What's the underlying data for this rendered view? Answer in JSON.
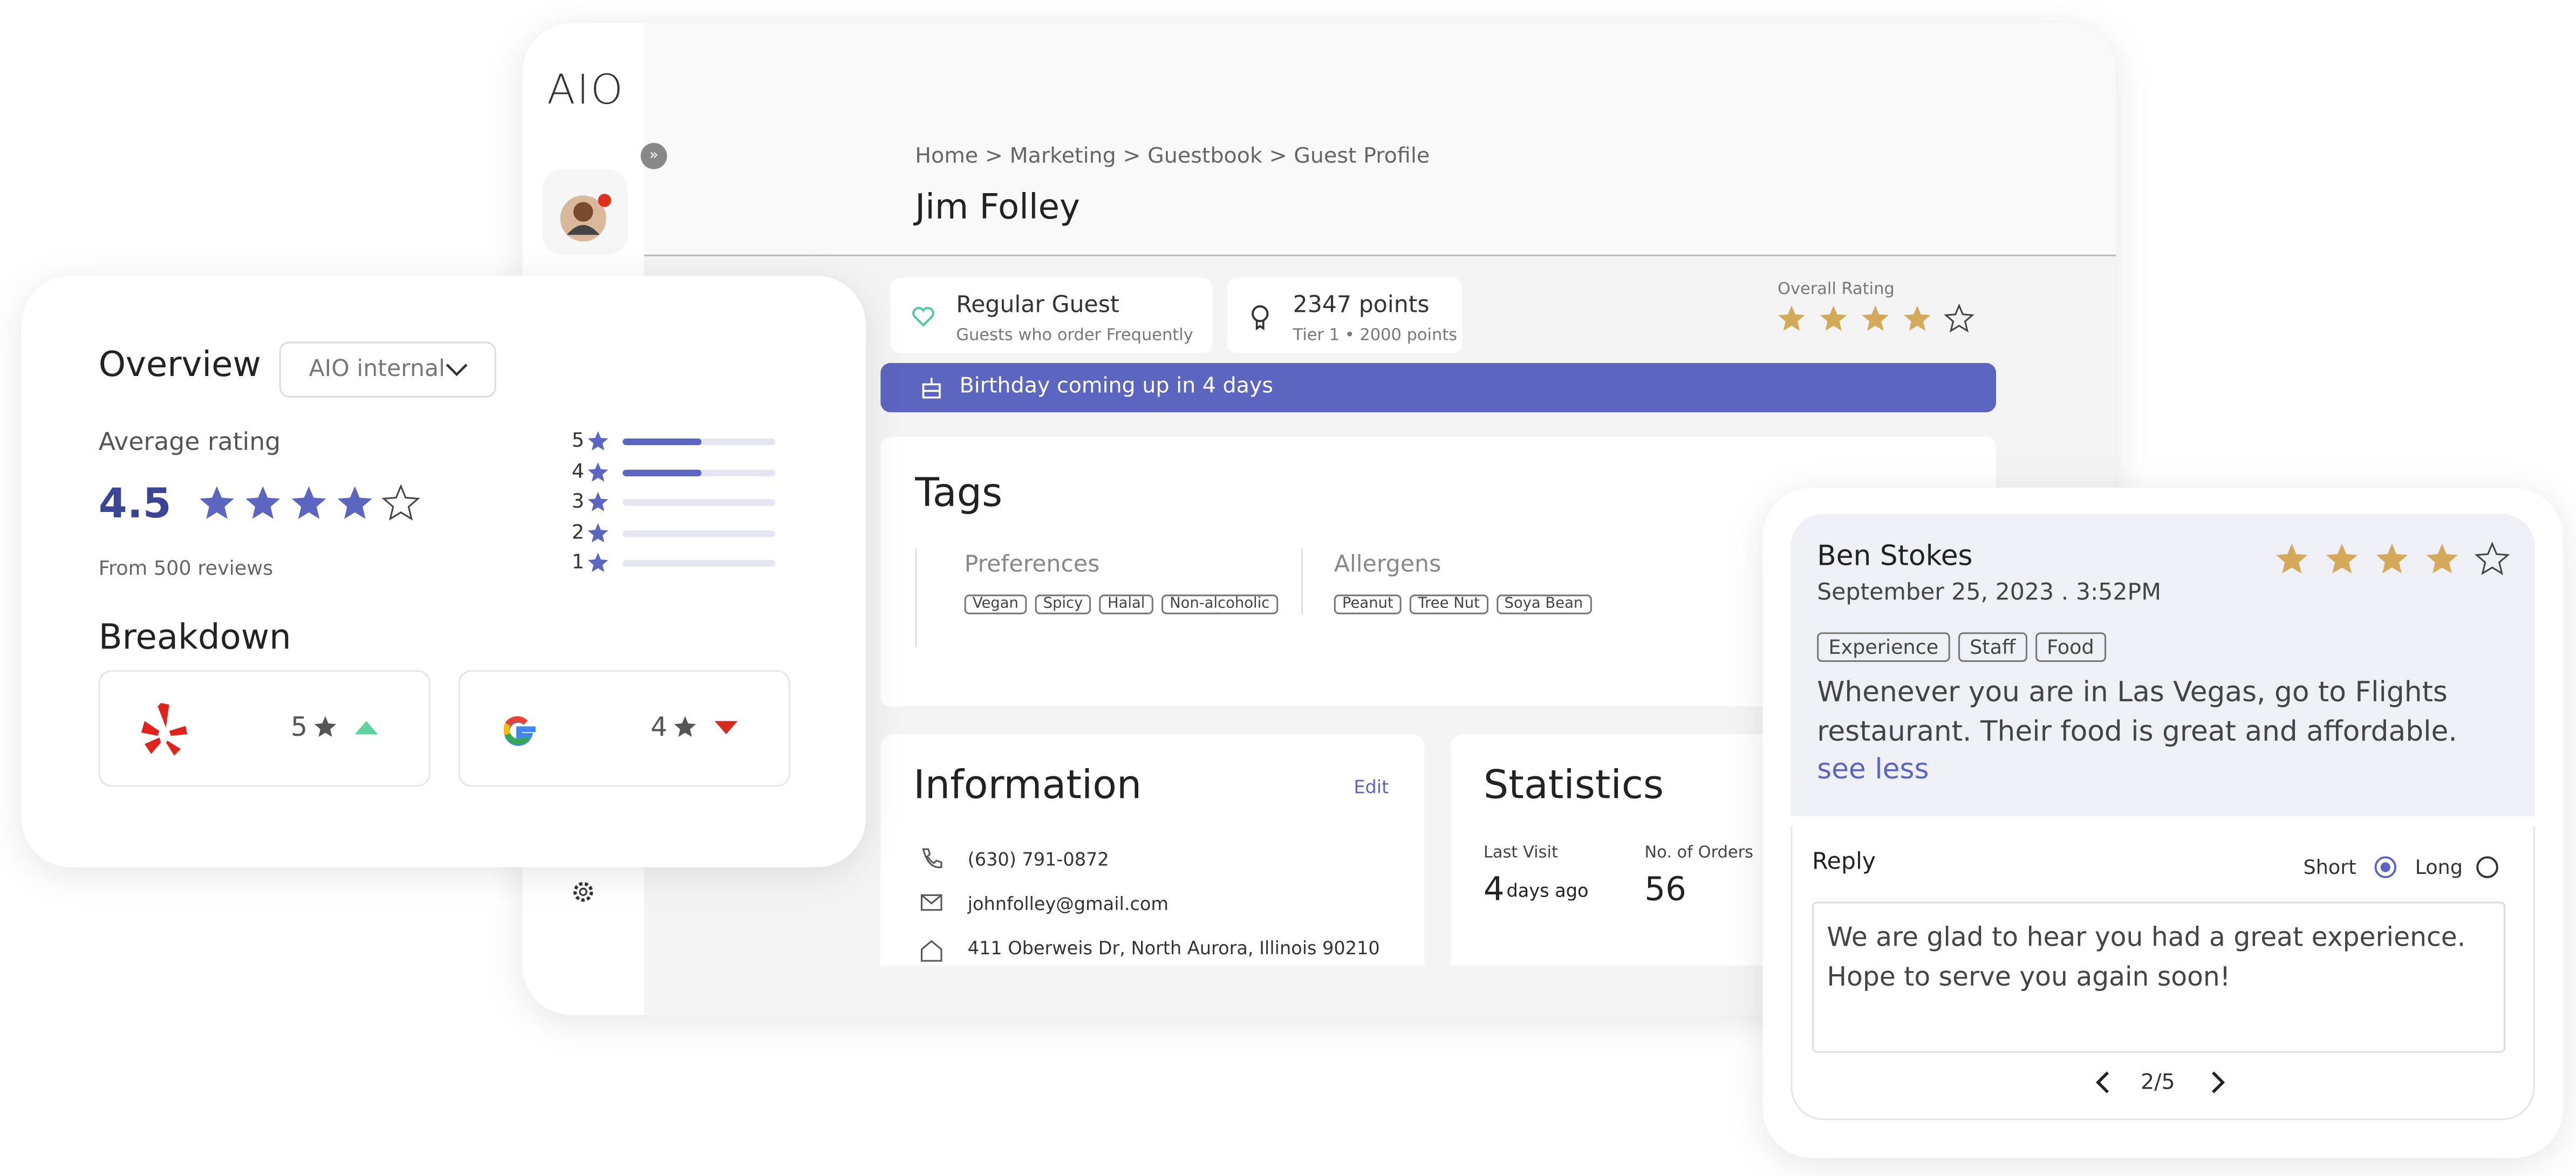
{
  "logo": "AIO",
  "breadcrumb": "Home > Marketing > Guestbook > Guest Profile",
  "guest": {
    "name": "Jim Folley",
    "status": "Regular Guest",
    "status_note": "Guests who order Frequently",
    "points": "2347 points",
    "tier": "Tier 1 • 2000 points",
    "overall_rating_label": "Overall Rating",
    "overall_rating": 4,
    "birthday": "Birthday coming up in 4 days"
  },
  "tags": {
    "title": "Tags",
    "groups": [
      {
        "name": "Preferences",
        "items": [
          "Vegan",
          "Spicy",
          "Halal",
          "Non-alcoholic"
        ]
      },
      {
        "name": "Allergens",
        "items": [
          "Peanut",
          "Tree Nut",
          "Soya Bean"
        ]
      }
    ]
  },
  "information": {
    "title": "Information",
    "edit": "Edit",
    "phone": "(630) 791-0872",
    "email": "johnfolley@gmail.com",
    "address": "411 Oberweis Dr, North Aurora, Illinois 90210"
  },
  "statistics": {
    "title": "Statistics",
    "last_visit_label": "Last Visit",
    "last_visit_value": 4,
    "last_visit_unit": "days ago",
    "orders_label": "No. of Orders",
    "orders": 56
  },
  "overview": {
    "title": "Overview",
    "source": "AIO internal",
    "average_label": "Average rating",
    "average": 4.5,
    "reviews": "From 500 reviews",
    "levels": [
      5,
      4,
      3,
      2,
      1
    ],
    "shares": [
      52,
      52,
      0,
      0,
      0
    ],
    "breakdown_title": "Breakdown",
    "sources": [
      {
        "rating": 5,
        "trend": "up"
      },
      {
        "rating": 4,
        "trend": "down"
      }
    ]
  },
  "review": {
    "author": "Ben Stokes",
    "date": "September 25, 2023 . 3:52PM",
    "rating": 4,
    "tags": [
      "Experience",
      "Staff",
      "Food"
    ],
    "text": "Whenever you are in Las Vegas, go to Flights restaurant. Their food is great and affordable.",
    "toggle": "see less",
    "reply_label": "Reply",
    "options": [
      "Short",
      "Long"
    ],
    "selected": 0,
    "reply": "We are glad to hear you had a great experience. Hope to serve you again soon!",
    "page": "2/5"
  }
}
